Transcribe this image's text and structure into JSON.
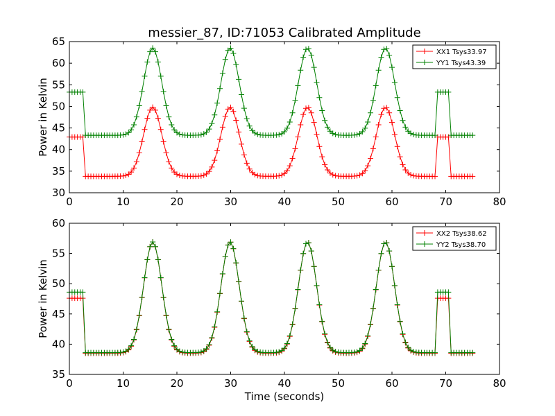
{
  "chart_data": [
    {
      "type": "line",
      "title": "messier_87, ID:71053 Calibrated Amplitude",
      "xlabel": "",
      "ylabel": "Power in Kelvin",
      "xlim": [
        0,
        80
      ],
      "ylim": [
        30,
        65
      ],
      "xticks": [
        0,
        10,
        20,
        30,
        40,
        50,
        60,
        70,
        80
      ],
      "yticks": [
        30,
        35,
        40,
        45,
        50,
        55,
        60,
        65
      ],
      "grid": false,
      "legend": "top-right",
      "marker": "+",
      "x_range": [
        0,
        75
      ],
      "x_step": 0.5,
      "series": [
        {
          "name": "XX1 Tsys33.97",
          "color": "#ff0000",
          "baseline": 33.8,
          "peak": 49.8,
          "peaks_x": [
            15.5,
            29.9,
            44.3,
            58.8
          ],
          "peak_width": 1.7,
          "plateau_value": 42.9,
          "plateaus": [
            [
              0,
              2.7
            ],
            [
              68.4,
              70.5
            ]
          ]
        },
        {
          "name": "YY1 Tsys43.39",
          "color": "#008000",
          "baseline": 43.3,
          "peak": 63.5,
          "peaks_x": [
            15.5,
            29.9,
            44.3,
            58.8
          ],
          "peak_width": 1.7,
          "plateau_value": 53.3,
          "plateaus": [
            [
              0,
              2.7
            ],
            [
              68.4,
              70.5
            ]
          ]
        }
      ]
    },
    {
      "type": "line",
      "title": "",
      "xlabel": "Time (seconds)",
      "ylabel": "Power in Kelvin",
      "xlim": [
        0,
        80
      ],
      "ylim": [
        35,
        60
      ],
      "xticks": [
        0,
        10,
        20,
        30,
        40,
        50,
        60,
        70,
        80
      ],
      "yticks": [
        35,
        40,
        45,
        50,
        55,
        60
      ],
      "grid": false,
      "legend": "top-right",
      "marker": "+",
      "x_range": [
        0,
        75
      ],
      "x_step": 0.5,
      "series": [
        {
          "name": "XX2 Tsys38.62",
          "color": "#ff0000",
          "baseline": 38.5,
          "peak": 56.9,
          "peaks_x": [
            15.5,
            29.9,
            44.3,
            58.8
          ],
          "peak_width": 1.7,
          "plateau_value": 47.6,
          "plateaus": [
            [
              0,
              2.7
            ],
            [
              68.4,
              70.5
            ]
          ]
        },
        {
          "name": "YY2 Tsys38.70",
          "color": "#008000",
          "baseline": 38.6,
          "peak": 56.9,
          "peaks_x": [
            15.5,
            29.9,
            44.3,
            58.8
          ],
          "peak_width": 1.7,
          "plateau_value": 48.6,
          "plateaus": [
            [
              0,
              2.7
            ],
            [
              68.4,
              70.5
            ]
          ]
        }
      ]
    }
  ]
}
